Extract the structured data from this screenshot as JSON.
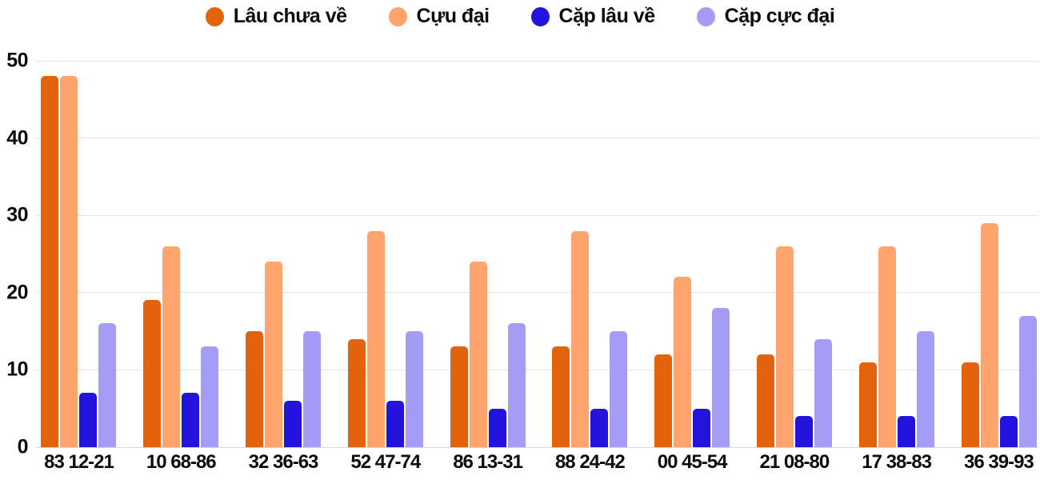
{
  "chart_data": {
    "type": "bar",
    "title": "",
    "xlabel": "",
    "ylabel": "",
    "categories": [
      "83 12-21",
      "10 68-86",
      "32 36-63",
      "52 47-74",
      "86 13-31",
      "88 24-42",
      "00 45-54",
      "21 08-80",
      "17 38-83",
      "36 39-93"
    ],
    "series": [
      {
        "name": "Lâu chưa về",
        "color": "#E2620E",
        "values": [
          48,
          19,
          15,
          14,
          13,
          13,
          12,
          12,
          11,
          11
        ]
      },
      {
        "name": "Cựu đại",
        "color": "#FFA46C",
        "values": [
          48,
          26,
          24,
          28,
          24,
          28,
          22,
          26,
          26,
          29
        ]
      },
      {
        "name": "Cặp lâu về",
        "color": "#2313DC",
        "values": [
          7,
          7,
          6,
          6,
          5,
          5,
          5,
          4,
          4,
          4
        ]
      },
      {
        "name": "Cặp cực đại",
        "color": "#A59CF8",
        "values": [
          16,
          13,
          15,
          15,
          16,
          15,
          18,
          14,
          15,
          17
        ]
      }
    ],
    "ylim": [
      0,
      50
    ],
    "yticks": [
      0,
      10,
      20,
      30,
      40,
      50
    ],
    "grid": true,
    "legend_position": "top"
  },
  "colors": {
    "background": "#FFFFFF",
    "gridline": "#E5E5E5",
    "baseline": "#D8D8D8",
    "text": "#0C0C0C"
  }
}
